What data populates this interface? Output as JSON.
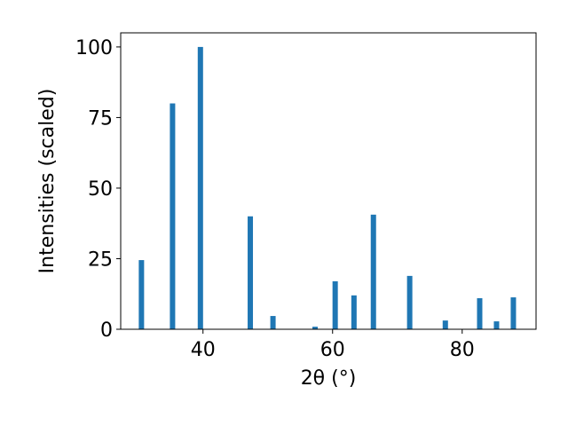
{
  "chart_data": {
    "type": "bar",
    "xlabel": "2θ (°)",
    "ylabel": "Intensities (scaled)",
    "x": [
      30.5,
      35.3,
      39.6,
      47.3,
      50.8,
      57.3,
      60.4,
      63.3,
      66.3,
      71.9,
      77.4,
      82.7,
      85.3,
      87.9
    ],
    "values": [
      24.5,
      80,
      100,
      40,
      4.7,
      0.9,
      17,
      12,
      40.6,
      18.9,
      3.1,
      11,
      2.8,
      11.3
    ],
    "color": "#1f77b4",
    "xlim": [
      27.3,
      91.4
    ],
    "ylim": [
      0,
      105
    ],
    "xticks": [
      40,
      60,
      80
    ],
    "yticks": [
      0,
      25,
      50,
      75,
      100
    ]
  }
}
